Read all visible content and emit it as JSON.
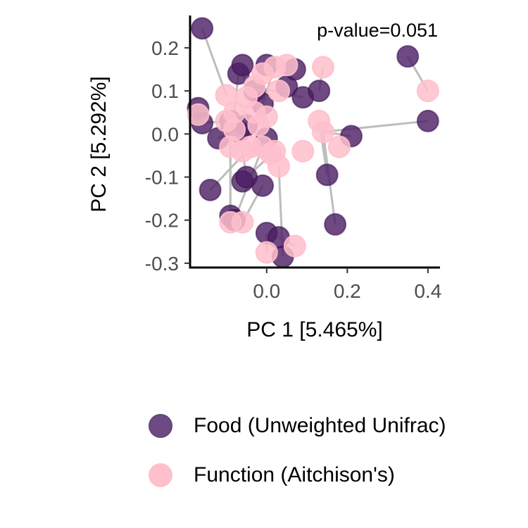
{
  "chart_data": {
    "type": "scatter",
    "xlabel": "PC 1 [5.465%]",
    "ylabel": "PC 2 [5.292%]",
    "annotation": "p-value=0.051",
    "xlim": [
      -0.19,
      0.43
    ],
    "ylim": [
      -0.31,
      0.275
    ],
    "xticks": [
      0.0,
      0.2,
      0.4
    ],
    "xtick_labels": [
      "0.0",
      "0.2",
      "0.4"
    ],
    "yticks": [
      -0.3,
      -0.2,
      -0.1,
      0.0,
      0.1,
      0.2
    ],
    "ytick_labels": [
      "-0.3",
      "-0.2",
      "-0.1",
      "0.0",
      "0.1",
      "0.2"
    ],
    "legend_position": "bottom",
    "series": [
      {
        "name": "Food (Unweighted Unifrac)",
        "color": "#4b1d63",
        "points": [
          [
            -0.16,
            0.245
          ],
          [
            -0.17,
            0.06
          ],
          [
            -0.16,
            0.025
          ],
          [
            -0.12,
            -0.01
          ],
          [
            -0.14,
            -0.13
          ],
          [
            -0.09,
            -0.19
          ],
          [
            -0.08,
            -0.2
          ],
          [
            -0.06,
            -0.11
          ],
          [
            -0.05,
            -0.1
          ],
          [
            -0.07,
            0.14
          ],
          [
            -0.06,
            0.16
          ],
          [
            -0.03,
            0.1
          ],
          [
            -0.01,
            0.07
          ],
          [
            -0.05,
            0.02
          ],
          [
            -0.09,
            0.03
          ],
          [
            -0.07,
            0.005
          ],
          [
            0.0,
            0.16
          ],
          [
            0.05,
            0.11
          ],
          [
            0.07,
            0.15
          ],
          [
            0.09,
            0.085
          ],
          [
            0.13,
            0.1
          ],
          [
            0.0,
            -0.01
          ],
          [
            -0.01,
            -0.12
          ],
          [
            0.0,
            -0.23
          ],
          [
            0.03,
            -0.24
          ],
          [
            0.04,
            -0.285
          ],
          [
            0.15,
            -0.095
          ],
          [
            0.17,
            -0.21
          ],
          [
            0.21,
            -0.005
          ],
          [
            0.35,
            0.18
          ],
          [
            0.4,
            0.03
          ]
        ]
      },
      {
        "name": "Function (Aitchison's)",
        "color": "#ffbfcc",
        "points": [
          [
            -0.17,
            0.045
          ],
          [
            -0.1,
            0.09
          ],
          [
            -0.08,
            0.05
          ],
          [
            -0.1,
            0.03
          ],
          [
            -0.08,
            0.01
          ],
          [
            -0.09,
            -0.03
          ],
          [
            -0.06,
            -0.04
          ],
          [
            -0.04,
            -0.03
          ],
          [
            -0.05,
            0.085
          ],
          [
            -0.03,
            0.11
          ],
          [
            -0.01,
            0.14
          ],
          [
            0.02,
            0.155
          ],
          [
            0.05,
            0.16
          ],
          [
            0.03,
            0.1
          ],
          [
            -0.03,
            0.05
          ],
          [
            0.0,
            0.04
          ],
          [
            -0.01,
            -0.03
          ],
          [
            0.02,
            -0.04
          ],
          [
            0.01,
            -0.045
          ],
          [
            0.03,
            -0.075
          ],
          [
            0.09,
            -0.04
          ],
          [
            0.13,
            0.03
          ],
          [
            0.14,
            0.005
          ],
          [
            0.18,
            -0.03
          ],
          [
            0.14,
            0.155
          ],
          [
            0.4,
            0.1
          ],
          [
            -0.09,
            -0.205
          ],
          [
            -0.06,
            -0.205
          ],
          [
            0.0,
            -0.275
          ],
          [
            0.07,
            -0.26
          ],
          [
            -0.02,
            0.02
          ]
        ]
      }
    ],
    "links": [
      [
        [
          -0.16,
          0.245
        ],
        [
          -0.1,
          0.09
        ]
      ],
      [
        [
          -0.17,
          0.06
        ],
        [
          -0.17,
          0.045
        ]
      ],
      [
        [
          -0.16,
          0.025
        ],
        [
          -0.1,
          0.03
        ]
      ],
      [
        [
          -0.12,
          -0.01
        ],
        [
          -0.08,
          0.01
        ]
      ],
      [
        [
          -0.14,
          -0.13
        ],
        [
          -0.04,
          -0.03
        ]
      ],
      [
        [
          -0.09,
          -0.19
        ],
        [
          -0.09,
          -0.03
        ]
      ],
      [
        [
          -0.08,
          -0.2
        ],
        [
          -0.01,
          -0.03
        ]
      ],
      [
        [
          -0.06,
          -0.11
        ],
        [
          0.02,
          -0.04
        ]
      ],
      [
        [
          -0.05,
          -0.1
        ],
        [
          -0.06,
          -0.04
        ]
      ],
      [
        [
          -0.07,
          0.14
        ],
        [
          -0.08,
          0.05
        ]
      ],
      [
        [
          -0.06,
          0.16
        ],
        [
          -0.05,
          0.085
        ]
      ],
      [
        [
          -0.03,
          0.1
        ],
        [
          -0.03,
          0.05
        ]
      ],
      [
        [
          -0.01,
          0.07
        ],
        [
          0.02,
          0.155
        ]
      ],
      [
        [
          -0.05,
          0.02
        ],
        [
          0.0,
          0.04
        ]
      ],
      [
        [
          0.0,
          0.16
        ],
        [
          -0.01,
          0.14
        ]
      ],
      [
        [
          0.05,
          0.11
        ],
        [
          0.03,
          0.1
        ]
      ],
      [
        [
          0.07,
          0.15
        ],
        [
          0.05,
          0.16
        ]
      ],
      [
        [
          0.09,
          0.085
        ],
        [
          -0.03,
          0.11
        ]
      ],
      [
        [
          0.13,
          0.1
        ],
        [
          0.14,
          0.155
        ]
      ],
      [
        [
          0.0,
          -0.01
        ],
        [
          0.01,
          -0.045
        ]
      ],
      [
        [
          -0.01,
          -0.12
        ],
        [
          -0.06,
          -0.205
        ]
      ],
      [
        [
          0.0,
          -0.23
        ],
        [
          0.0,
          -0.275
        ]
      ],
      [
        [
          0.03,
          -0.24
        ],
        [
          0.07,
          -0.26
        ]
      ],
      [
        [
          0.04,
          -0.285
        ],
        [
          0.03,
          -0.075
        ]
      ],
      [
        [
          0.15,
          -0.095
        ],
        [
          0.13,
          0.03
        ]
      ],
      [
        [
          0.17,
          -0.21
        ],
        [
          0.14,
          0.005
        ]
      ],
      [
        [
          0.21,
          -0.005
        ],
        [
          0.14,
          0.005
        ]
      ],
      [
        [
          0.35,
          0.18
        ],
        [
          0.4,
          0.1
        ]
      ],
      [
        [
          0.4,
          0.03
        ],
        [
          0.14,
          0.005
        ]
      ],
      [
        [
          -0.09,
          0.03
        ],
        [
          -0.09,
          -0.205
        ]
      ]
    ],
    "link_color": "#bdbdbd"
  }
}
